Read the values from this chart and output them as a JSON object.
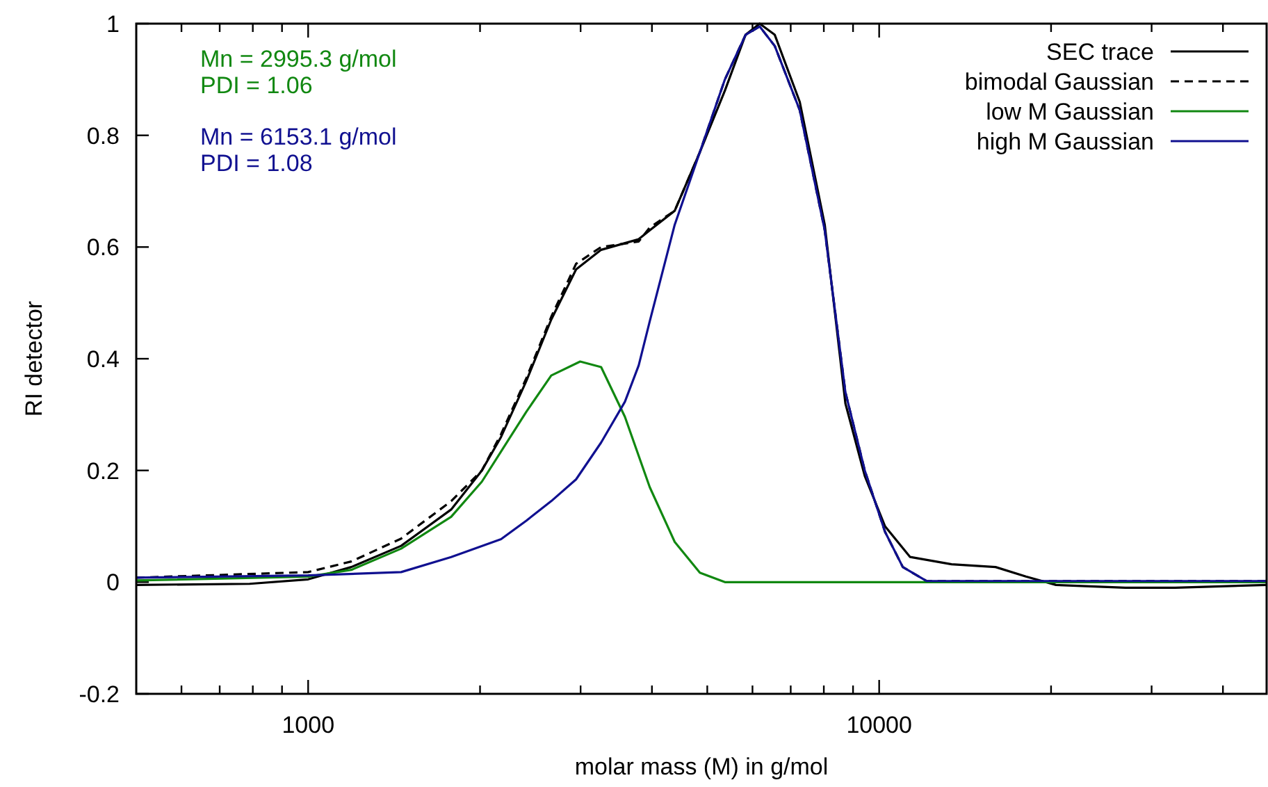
{
  "chart_data": {
    "type": "line",
    "xlabel": "molar mass (M) in g/mol",
    "ylabel": "RI detector",
    "log": "x",
    "legend": "top right",
    "grid": false,
    "xlim": [
      500,
      47700
    ],
    "ylim": [
      -0.2,
      1
    ],
    "xticks": [
      {
        "value": 600,
        "label": null
      },
      {
        "value": 700,
        "label": null
      },
      {
        "value": 800,
        "label": null
      },
      {
        "value": 900,
        "label": null
      },
      1000,
      {
        "value": 2000,
        "label": null
      },
      {
        "value": 3000,
        "label": null
      },
      {
        "value": 4000,
        "label": null
      },
      {
        "value": 5000,
        "label": null
      },
      {
        "value": 6000,
        "label": null
      },
      {
        "value": 7000,
        "label": null
      },
      {
        "value": 8000,
        "label": null
      },
      {
        "value": 9000,
        "label": null
      },
      10000,
      {
        "value": 20000,
        "label": null
      },
      {
        "value": 30000,
        "label": null
      },
      {
        "value": 40000,
        "label": null
      }
    ],
    "yticks": [
      -0.2,
      0,
      0.2,
      0.4,
      0.6,
      0.8,
      1
    ],
    "annotations": [
      "Mn = 2995.3 g/mol",
      "PDI = 1.06",
      "Mn = 6153.1 g/mol",
      "PDI = 1.08"
    ],
    "series": [
      {
        "name": "SEC trace",
        "color": "#000000",
        "line_style": "solid",
        "x": [
          500,
          790,
          1000,
          1190,
          1455,
          1780,
          2015,
          2177,
          2410,
          2665,
          2946,
          3259,
          3792,
          3965,
          4385,
          4853,
          5368,
          5835,
          6176,
          6564,
          7260,
          8030,
          8727,
          9436,
          10240,
          11330,
          13390,
          15990,
          18070,
          20400,
          27000,
          33000,
          47700
        ],
        "values": [
          -0.005,
          -0.003,
          0.005,
          0.027,
          0.065,
          0.13,
          0.2,
          0.26,
          0.36,
          0.47,
          0.56,
          0.595,
          0.614,
          0.63,
          0.665,
          0.77,
          0.88,
          0.98,
          1.0,
          0.98,
          0.86,
          0.64,
          0.32,
          0.19,
          0.1,
          0.045,
          0.032,
          0.027,
          0.01,
          -0.005,
          -0.01,
          -0.01,
          -0.005
        ]
      },
      {
        "name": "bimodal Gaussian",
        "color": "#000000",
        "line_style": "dashed",
        "x": [
          500,
          1000,
          1190,
          1455,
          1780,
          2015,
          2177,
          2410,
          2665,
          2946,
          3259,
          3792,
          3965,
          4385,
          4853,
          5368,
          5835,
          6176,
          6564,
          7260,
          8030,
          8727,
          9436,
          10240,
          11000,
          12100,
          47700
        ],
        "values": [
          0.008,
          0.018,
          0.037,
          0.078,
          0.145,
          0.2,
          0.265,
          0.365,
          0.475,
          0.57,
          0.6,
          0.61,
          0.635,
          0.665,
          0.77,
          0.9,
          0.98,
          0.995,
          0.96,
          0.845,
          0.63,
          0.34,
          0.2,
          0.09,
          0.027,
          0.002,
          0.002
        ]
      },
      {
        "name": "low M Gaussian",
        "color": "#118811",
        "line_style": "solid",
        "x": [
          500,
          1000,
          1190,
          1455,
          1780,
          2015,
          2177,
          2410,
          2665,
          2995,
          3259,
          3587,
          3965,
          4385,
          4853,
          5368,
          47700
        ],
        "values": [
          0.003,
          0.01,
          0.022,
          0.06,
          0.117,
          0.18,
          0.234,
          0.305,
          0.37,
          0.395,
          0.385,
          0.296,
          0.17,
          0.072,
          0.017,
          0,
          0
        ]
      },
      {
        "name": "high M Gaussian",
        "color": "#101090",
        "line_style": "solid",
        "x": [
          500,
          1000,
          1455,
          1780,
          2177,
          2410,
          2665,
          2946,
          3259,
          3587,
          3792,
          3965,
          4385,
          4853,
          5368,
          5835,
          6176,
          6564,
          7260,
          8030,
          8727,
          9436,
          10240,
          11000,
          12100,
          47700
        ],
        "values": [
          0.008,
          0.012,
          0.018,
          0.045,
          0.077,
          0.11,
          0.145,
          0.184,
          0.25,
          0.323,
          0.388,
          0.467,
          0.64,
          0.77,
          0.9,
          0.98,
          0.995,
          0.96,
          0.845,
          0.63,
          0.34,
          0.2,
          0.09,
          0.027,
          0.002,
          0.002
        ]
      }
    ]
  }
}
